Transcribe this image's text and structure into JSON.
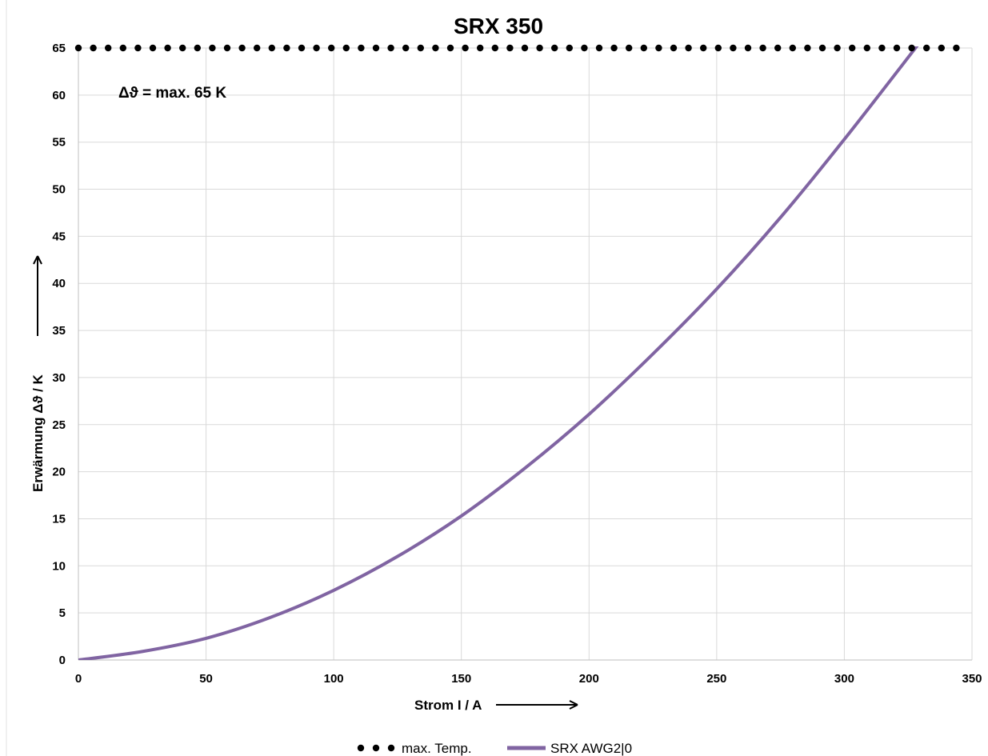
{
  "chart_data": {
    "type": "line",
    "title": "SRX 350",
    "xlabel": "Strom I / A",
    "ylabel": "Erwärmung Δϑ / K",
    "xlim": [
      0,
      350
    ],
    "ylim": [
      0,
      65
    ],
    "x_ticks": [
      "0",
      "50",
      "100",
      "150",
      "200",
      "250",
      "300",
      "350"
    ],
    "y_ticks": [
      "0",
      "5",
      "10",
      "15",
      "20",
      "25",
      "30",
      "35",
      "40",
      "45",
      "50",
      "55",
      "60",
      "65"
    ],
    "grid": true,
    "legend_position": "bottom",
    "annotation": "Δϑ = max. 65 K",
    "series": [
      {
        "name": "max. Temp.",
        "style": "dotted",
        "color": "#000000",
        "x": [
          0,
          345
        ],
        "y": [
          65,
          65
        ]
      },
      {
        "name": "SRX AWG2|0",
        "style": "solid",
        "color": "#8064a2",
        "x": [
          0,
          25,
          50,
          75,
          100,
          125,
          150,
          175,
          200,
          225,
          250,
          275,
          300,
          329
        ],
        "y": [
          0,
          0.9,
          2.3,
          4.5,
          7.4,
          11.0,
          15.3,
          20.4,
          26.1,
          32.5,
          39.4,
          47.0,
          55.3,
          65.4
        ]
      }
    ]
  }
}
